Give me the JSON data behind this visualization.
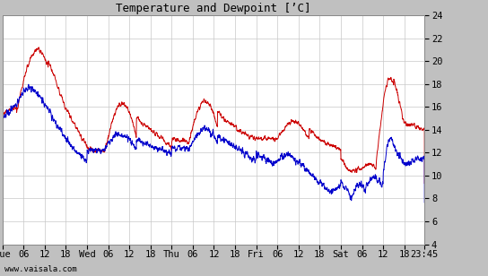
{
  "title": "Temperature and Dewpoint [’C]",
  "temp_color": "#cc0000",
  "dewp_color": "#0000cc",
  "background_color": "#ffffff",
  "fig_background": "#c0c0c0",
  "grid_color": "#c8c8c8",
  "ylim": [
    4,
    24
  ],
  "yticks": [
    4,
    6,
    8,
    10,
    12,
    14,
    16,
    18,
    20,
    22,
    24
  ],
  "watermark": "www.vaisala.com",
  "figsize": [
    5.44,
    3.08
  ],
  "dpi": 100,
  "title_fontsize": 9,
  "tick_fontsize": 7.5,
  "watermark_fontsize": 6.5,
  "linewidth": 0.7
}
